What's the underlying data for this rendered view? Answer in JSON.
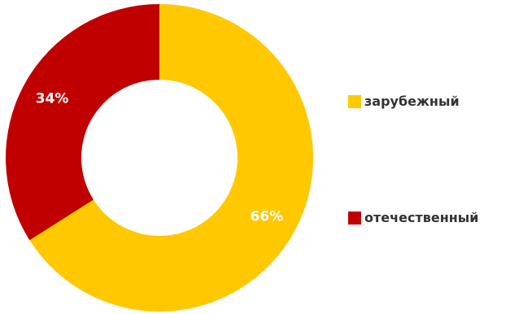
{
  "chart_data": {
    "type": "pie",
    "variant": "donut",
    "categories": [
      "зарубежный",
      "отечественный"
    ],
    "values": [
      66,
      34
    ],
    "value_labels": [
      "66%",
      "34%"
    ],
    "colors": [
      "#FFC800",
      "#C00000"
    ],
    "legend": {
      "placement": "right",
      "entries": [
        "зарубежный",
        "отечественный"
      ]
    },
    "title": ""
  }
}
